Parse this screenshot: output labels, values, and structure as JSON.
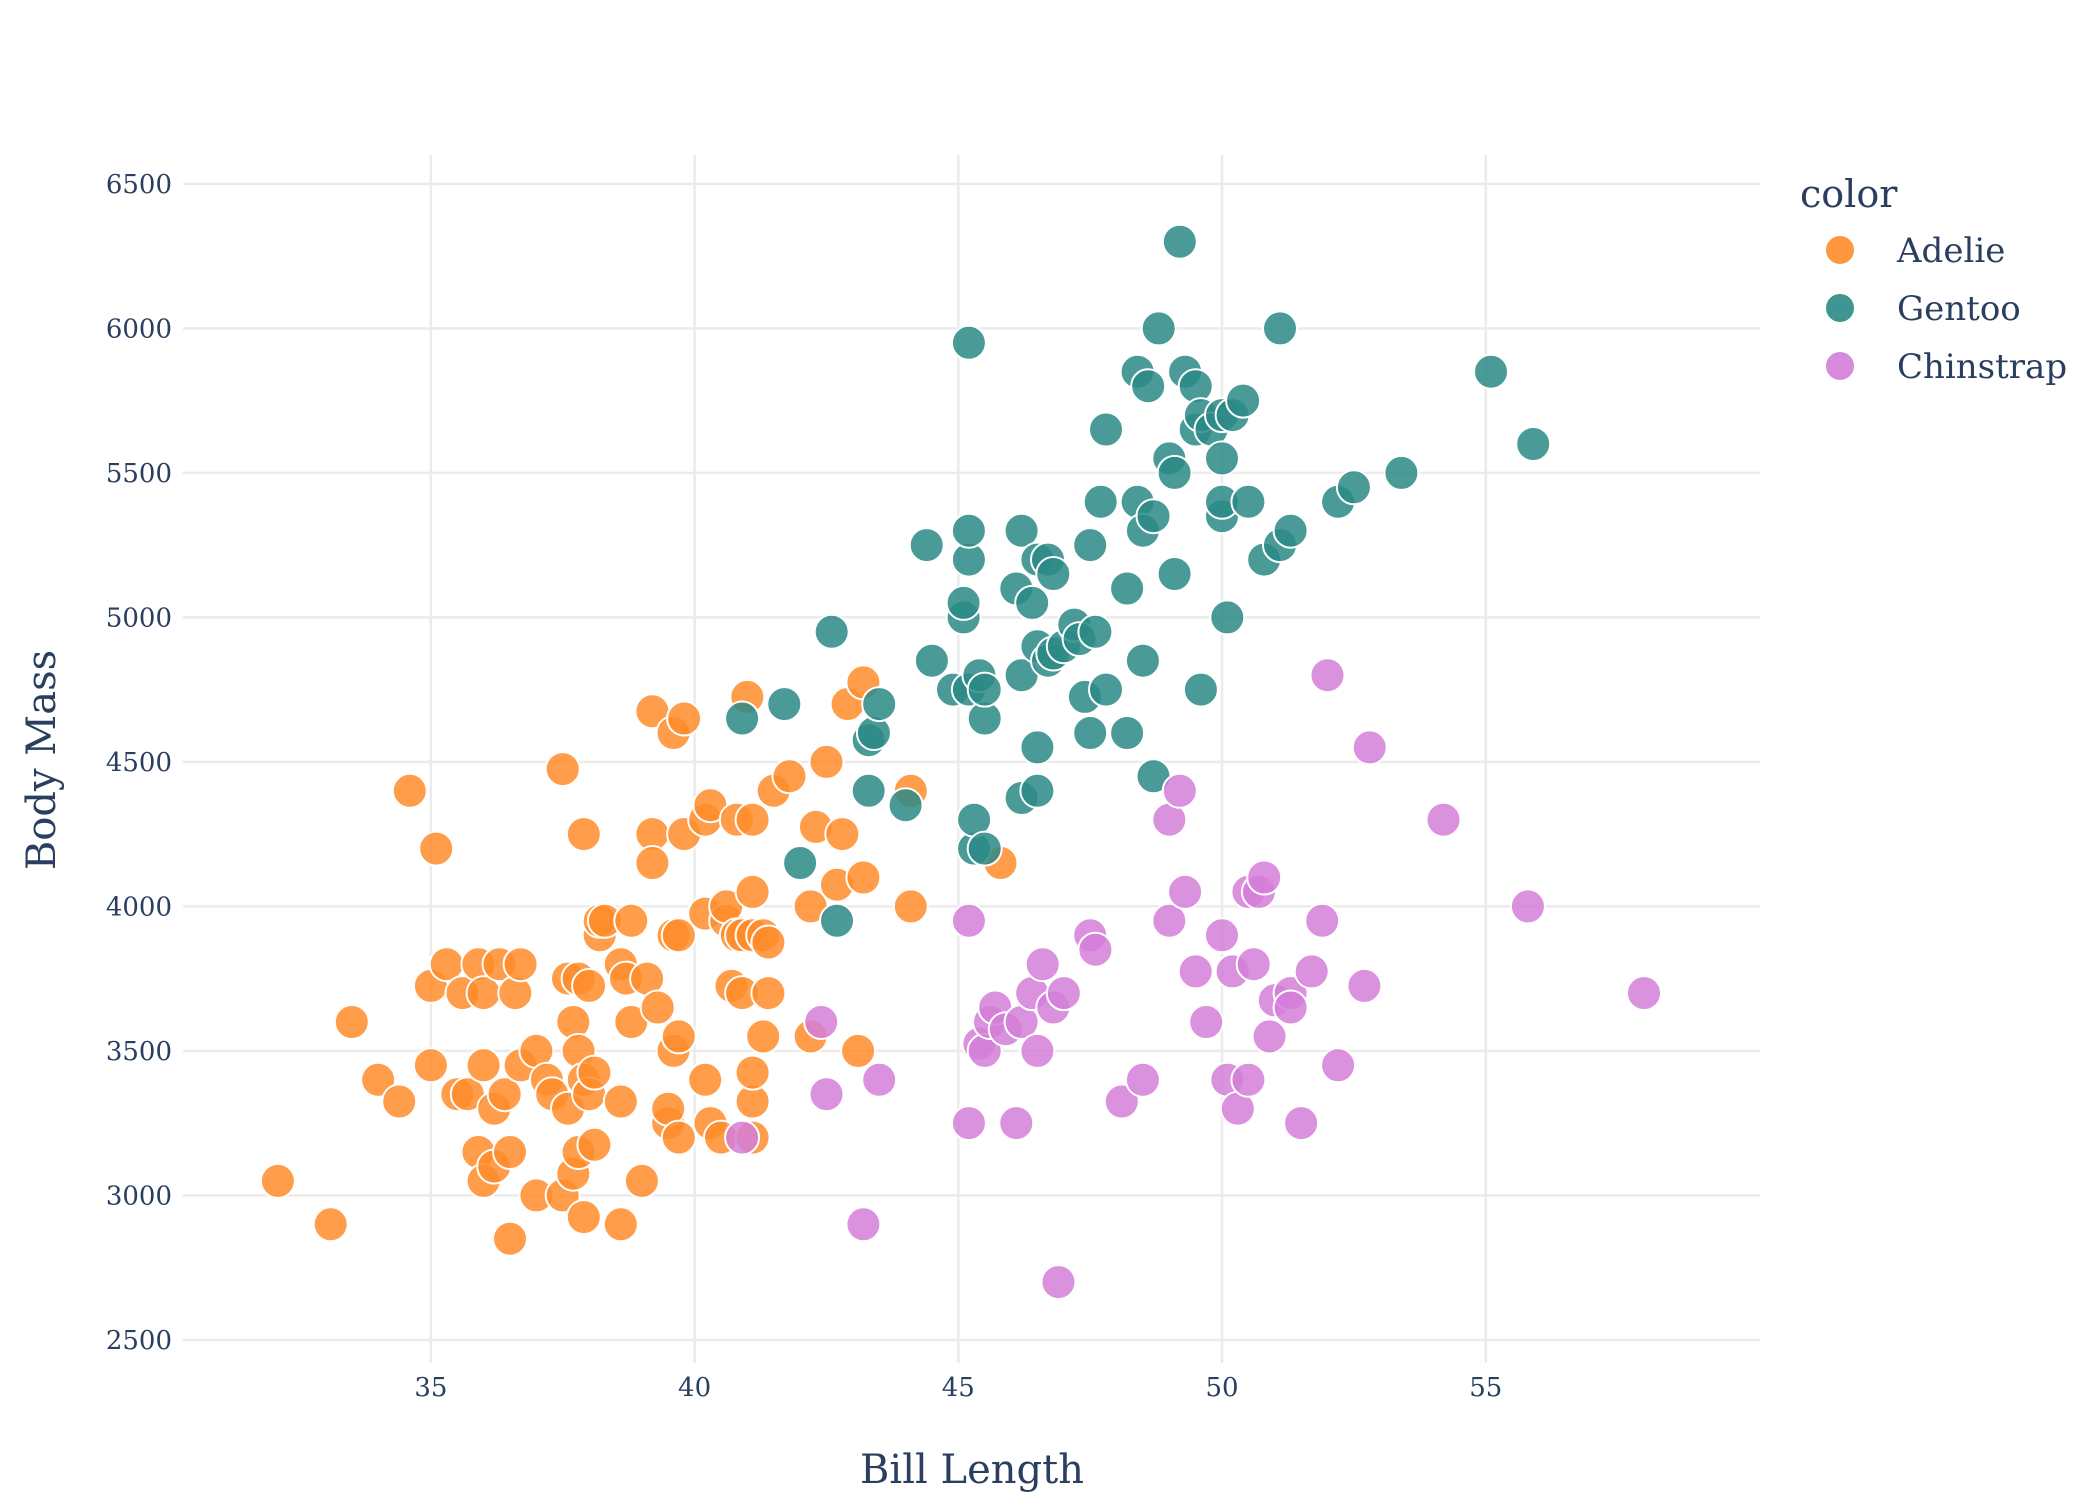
{
  "chart_data": {
    "type": "scatter",
    "title": "",
    "xlabel": "Bill Length",
    "ylabel": "Body Mass",
    "xlim": [
      30.3,
      60.2
    ],
    "ylim": [
      2420,
      6600
    ],
    "xticks": [
      35,
      40,
      45,
      50,
      55
    ],
    "yticks": [
      2500,
      3000,
      3500,
      4000,
      4500,
      5000,
      5500,
      6000,
      6500
    ],
    "grid": true,
    "legend": {
      "title": "color",
      "position": "top-right"
    },
    "series": [
      {
        "name": "Adelie",
        "color": "#ff8c2a",
        "points": [
          [
            32.1,
            3050
          ],
          [
            33.1,
            2900
          ],
          [
            33.5,
            3600
          ],
          [
            34.0,
            3400
          ],
          [
            34.4,
            3325
          ],
          [
            34.6,
            4400
          ],
          [
            35.0,
            3450
          ],
          [
            35.0,
            3725
          ],
          [
            35.1,
            4200
          ],
          [
            35.3,
            3800
          ],
          [
            35.5,
            3350
          ],
          [
            35.6,
            3700
          ],
          [
            35.7,
            3350
          ],
          [
            35.9,
            3150
          ],
          [
            35.9,
            3800
          ],
          [
            36.0,
            3050
          ],
          [
            36.0,
            3450
          ],
          [
            36.0,
            3700
          ],
          [
            36.2,
            3100
          ],
          [
            36.2,
            3300
          ],
          [
            36.3,
            3800
          ],
          [
            36.4,
            3350
          ],
          [
            36.5,
            2850
          ],
          [
            36.5,
            3150
          ],
          [
            36.6,
            3700
          ],
          [
            36.7,
            3800
          ],
          [
            36.7,
            3450
          ],
          [
            37.0,
            3500
          ],
          [
            37.0,
            3000
          ],
          [
            37.2,
            3400
          ],
          [
            37.3,
            3350
          ],
          [
            37.5,
            4475
          ],
          [
            37.5,
            3000
          ],
          [
            37.6,
            3750
          ],
          [
            37.6,
            3300
          ],
          [
            37.7,
            3600
          ],
          [
            37.7,
            3075
          ],
          [
            37.8,
            3500
          ],
          [
            37.8,
            3750
          ],
          [
            37.8,
            3150
          ],
          [
            37.9,
            3400
          ],
          [
            37.9,
            2925
          ],
          [
            37.9,
            4250
          ],
          [
            38.0,
            3350
          ],
          [
            38.0,
            3725
          ],
          [
            38.1,
            3175
          ],
          [
            38.1,
            3425
          ],
          [
            38.2,
            3900
          ],
          [
            38.2,
            3950
          ],
          [
            38.3,
            3950
          ],
          [
            38.6,
            3800
          ],
          [
            38.6,
            3325
          ],
          [
            38.6,
            2900
          ],
          [
            38.7,
            3750
          ],
          [
            38.8,
            3950
          ],
          [
            38.8,
            3600
          ],
          [
            39.0,
            3050
          ],
          [
            39.1,
            3750
          ],
          [
            39.2,
            4250
          ],
          [
            39.2,
            4150
          ],
          [
            39.2,
            4675
          ],
          [
            39.3,
            3650
          ],
          [
            39.5,
            3250
          ],
          [
            39.5,
            3300
          ],
          [
            39.6,
            3500
          ],
          [
            39.6,
            3900
          ],
          [
            39.6,
            4600
          ],
          [
            39.7,
            3200
          ],
          [
            39.7,
            3550
          ],
          [
            39.7,
            3900
          ],
          [
            39.8,
            4250
          ],
          [
            39.8,
            4650
          ],
          [
            40.2,
            3400
          ],
          [
            40.2,
            3975
          ],
          [
            40.2,
            4300
          ],
          [
            40.3,
            3250
          ],
          [
            40.3,
            4350
          ],
          [
            40.5,
            3200
          ],
          [
            40.6,
            3950
          ],
          [
            40.6,
            4000
          ],
          [
            40.7,
            3725
          ],
          [
            40.8,
            3900
          ],
          [
            40.8,
            4300
          ],
          [
            40.9,
            3700
          ],
          [
            40.9,
            3900
          ],
          [
            41.0,
            4725
          ],
          [
            41.1,
            3200
          ],
          [
            41.1,
            3325
          ],
          [
            41.1,
            3425
          ],
          [
            41.1,
            3900
          ],
          [
            41.1,
            4050
          ],
          [
            41.1,
            4300
          ],
          [
            41.3,
            3900
          ],
          [
            41.3,
            3550
          ],
          [
            41.4,
            3700
          ],
          [
            41.4,
            3875
          ],
          [
            41.5,
            4400
          ],
          [
            41.8,
            4450
          ],
          [
            42.2,
            3550
          ],
          [
            42.2,
            4000
          ],
          [
            42.3,
            4275
          ],
          [
            42.5,
            4500
          ],
          [
            42.7,
            4075
          ],
          [
            42.8,
            4250
          ],
          [
            42.9,
            4700
          ],
          [
            43.1,
            3500
          ],
          [
            43.2,
            4775
          ],
          [
            43.2,
            4100
          ],
          [
            44.1,
            4000
          ],
          [
            44.1,
            4400
          ],
          [
            45.8,
            4150
          ]
        ]
      },
      {
        "name": "Gentoo",
        "color": "#2a8a86",
        "points": [
          [
            40.9,
            4650
          ],
          [
            41.7,
            4700
          ],
          [
            42.0,
            4150
          ],
          [
            42.6,
            4950
          ],
          [
            42.7,
            3950
          ],
          [
            43.3,
            4400
          ],
          [
            43.3,
            4575
          ],
          [
            43.4,
            4600
          ],
          [
            43.5,
            4700
          ],
          [
            44.0,
            4350
          ],
          [
            44.4,
            5250
          ],
          [
            44.5,
            4850
          ],
          [
            44.9,
            4750
          ],
          [
            45.1,
            5000
          ],
          [
            45.1,
            5050
          ],
          [
            45.2,
            4750
          ],
          [
            45.2,
            5200
          ],
          [
            45.2,
            5300
          ],
          [
            45.2,
            5950
          ],
          [
            45.3,
            4200
          ],
          [
            45.3,
            4300
          ],
          [
            45.4,
            4800
          ],
          [
            45.5,
            4200
          ],
          [
            45.5,
            4650
          ],
          [
            45.5,
            4750
          ],
          [
            46.1,
            5100
          ],
          [
            46.2,
            4375
          ],
          [
            46.2,
            4800
          ],
          [
            46.2,
            5300
          ],
          [
            46.4,
            5050
          ],
          [
            46.5,
            4400
          ],
          [
            46.5,
            4550
          ],
          [
            46.5,
            4900
          ],
          [
            46.5,
            5200
          ],
          [
            46.7,
            4850
          ],
          [
            46.7,
            5200
          ],
          [
            46.8,
            4875
          ],
          [
            46.8,
            5150
          ],
          [
            47.0,
            4900
          ],
          [
            47.2,
            4975
          ],
          [
            47.3,
            4925
          ],
          [
            47.4,
            4725
          ],
          [
            47.5,
            4600
          ],
          [
            47.5,
            5250
          ],
          [
            47.6,
            4950
          ],
          [
            47.7,
            5400
          ],
          [
            47.8,
            4750
          ],
          [
            47.8,
            5650
          ],
          [
            48.2,
            4600
          ],
          [
            48.2,
            5100
          ],
          [
            48.4,
            5400
          ],
          [
            48.4,
            5850
          ],
          [
            48.5,
            4850
          ],
          [
            48.5,
            5300
          ],
          [
            48.6,
            5800
          ],
          [
            48.7,
            4450
          ],
          [
            48.7,
            5350
          ],
          [
            48.8,
            6000
          ],
          [
            49.0,
            5550
          ],
          [
            49.1,
            5150
          ],
          [
            49.1,
            5500
          ],
          [
            49.2,
            6300
          ],
          [
            49.3,
            5850
          ],
          [
            49.5,
            5800
          ],
          [
            49.5,
            5650
          ],
          [
            49.6,
            4750
          ],
          [
            49.6,
            5700
          ],
          [
            49.8,
            5650
          ],
          [
            50.0,
            5350
          ],
          [
            50.0,
            5400
          ],
          [
            50.0,
            5700
          ],
          [
            50.0,
            5550
          ],
          [
            50.1,
            5000
          ],
          [
            50.2,
            5700
          ],
          [
            50.4,
            5750
          ],
          [
            50.5,
            5400
          ],
          [
            50.8,
            5200
          ],
          [
            51.1,
            5250
          ],
          [
            51.1,
            6000
          ],
          [
            51.3,
            5300
          ],
          [
            52.2,
            5400
          ],
          [
            52.5,
            5450
          ],
          [
            53.4,
            5500
          ],
          [
            55.1,
            5850
          ],
          [
            55.9,
            5600
          ]
        ]
      },
      {
        "name": "Chinstrap",
        "color": "#d47ed8",
        "points": [
          [
            40.9,
            3200
          ],
          [
            42.4,
            3600
          ],
          [
            42.5,
            3350
          ],
          [
            43.2,
            2900
          ],
          [
            43.5,
            3400
          ],
          [
            45.2,
            3250
          ],
          [
            45.2,
            3950
          ],
          [
            45.4,
            3525
          ],
          [
            45.5,
            3500
          ],
          [
            45.6,
            3600
          ],
          [
            45.7,
            3650
          ],
          [
            45.9,
            3575
          ],
          [
            46.1,
            3250
          ],
          [
            46.2,
            3600
          ],
          [
            46.4,
            3700
          ],
          [
            46.5,
            3500
          ],
          [
            46.6,
            3800
          ],
          [
            46.8,
            3650
          ],
          [
            46.9,
            2700
          ],
          [
            47.0,
            3700
          ],
          [
            47.5,
            3900
          ],
          [
            47.6,
            3850
          ],
          [
            48.1,
            3325
          ],
          [
            48.5,
            3400
          ],
          [
            49.0,
            4300
          ],
          [
            49.0,
            3950
          ],
          [
            49.2,
            4400
          ],
          [
            49.3,
            4050
          ],
          [
            49.5,
            3775
          ],
          [
            49.7,
            3600
          ],
          [
            50.0,
            3900
          ],
          [
            50.1,
            3400
          ],
          [
            50.2,
            3775
          ],
          [
            50.3,
            3300
          ],
          [
            50.5,
            3400
          ],
          [
            50.5,
            4050
          ],
          [
            50.6,
            3800
          ],
          [
            50.7,
            4050
          ],
          [
            50.8,
            4100
          ],
          [
            50.9,
            3550
          ],
          [
            51.0,
            3675
          ],
          [
            51.3,
            3700
          ],
          [
            51.3,
            3650
          ],
          [
            51.5,
            3250
          ],
          [
            51.7,
            3775
          ],
          [
            51.9,
            3950
          ],
          [
            52.0,
            4800
          ],
          [
            52.2,
            3450
          ],
          [
            52.7,
            3725
          ],
          [
            52.8,
            4550
          ],
          [
            54.2,
            4300
          ],
          [
            55.8,
            4000
          ],
          [
            58.0,
            3700
          ]
        ]
      }
    ]
  }
}
